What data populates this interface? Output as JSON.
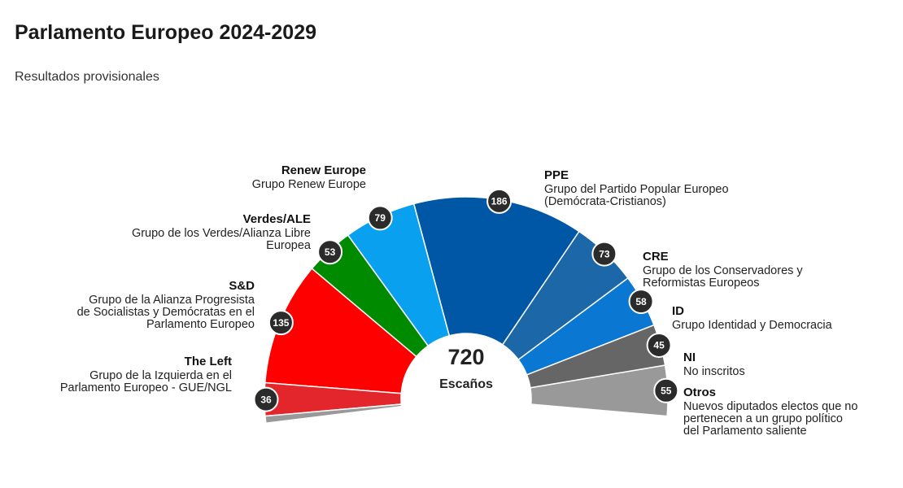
{
  "title": "Parlamento Europeo 2024-2029",
  "subtitle": "Resultados provisionales",
  "chart_data": {
    "type": "pie",
    "subtype": "semicircle-parliament",
    "total": 720,
    "total_label": "Escaños",
    "series": [
      {
        "name": "Otros",
        "desc": [
          "Nuevos diputados electos que no",
          "pertenecen a un grupo político",
          "del Parlamento saliente"
        ],
        "value": 55,
        "color": "#999999"
      },
      {
        "name": "NI",
        "desc": [
          "No inscritos"
        ],
        "value": 45,
        "color": "#666666"
      },
      {
        "name": "ID",
        "desc": [
          "Grupo Identidad y Democracia"
        ],
        "value": 58,
        "color": "#0A78D2"
      },
      {
        "name": "CRE",
        "desc": [
          "Grupo de los Conservadores y",
          "Reformistas Europeos"
        ],
        "value": 73,
        "color": "#1B67A8"
      },
      {
        "name": "PPE",
        "desc": [
          "Grupo del Partido Popular Europeo",
          "(Demócrata-Cristianos)"
        ],
        "value": 186,
        "color": "#0057A6"
      },
      {
        "name": "Renew Europe",
        "desc": [
          "Grupo Renew Europe"
        ],
        "value": 79,
        "color": "#0AA0F0"
      },
      {
        "name": "Verdes/ALE",
        "desc": [
          "Grupo de los Verdes/Alianza Libre",
          "Europea"
        ],
        "value": 53,
        "color": "#008A00"
      },
      {
        "name": "S&D",
        "desc": [
          "Grupo de la Alianza Progresista",
          "de Socialistas y Demócratas en el",
          "Parlamento Europeo"
        ],
        "value": 135,
        "color": "#FF0000"
      },
      {
        "name": "The Left",
        "desc": [
          "Grupo de la Izquierda en el",
          "Parlamento Europeo - GUE/NGL"
        ],
        "value": 36,
        "color": "#E2262C"
      },
      {
        "name": "",
        "desc": [],
        "value": 0,
        "color": "#999999"
      }
    ]
  }
}
